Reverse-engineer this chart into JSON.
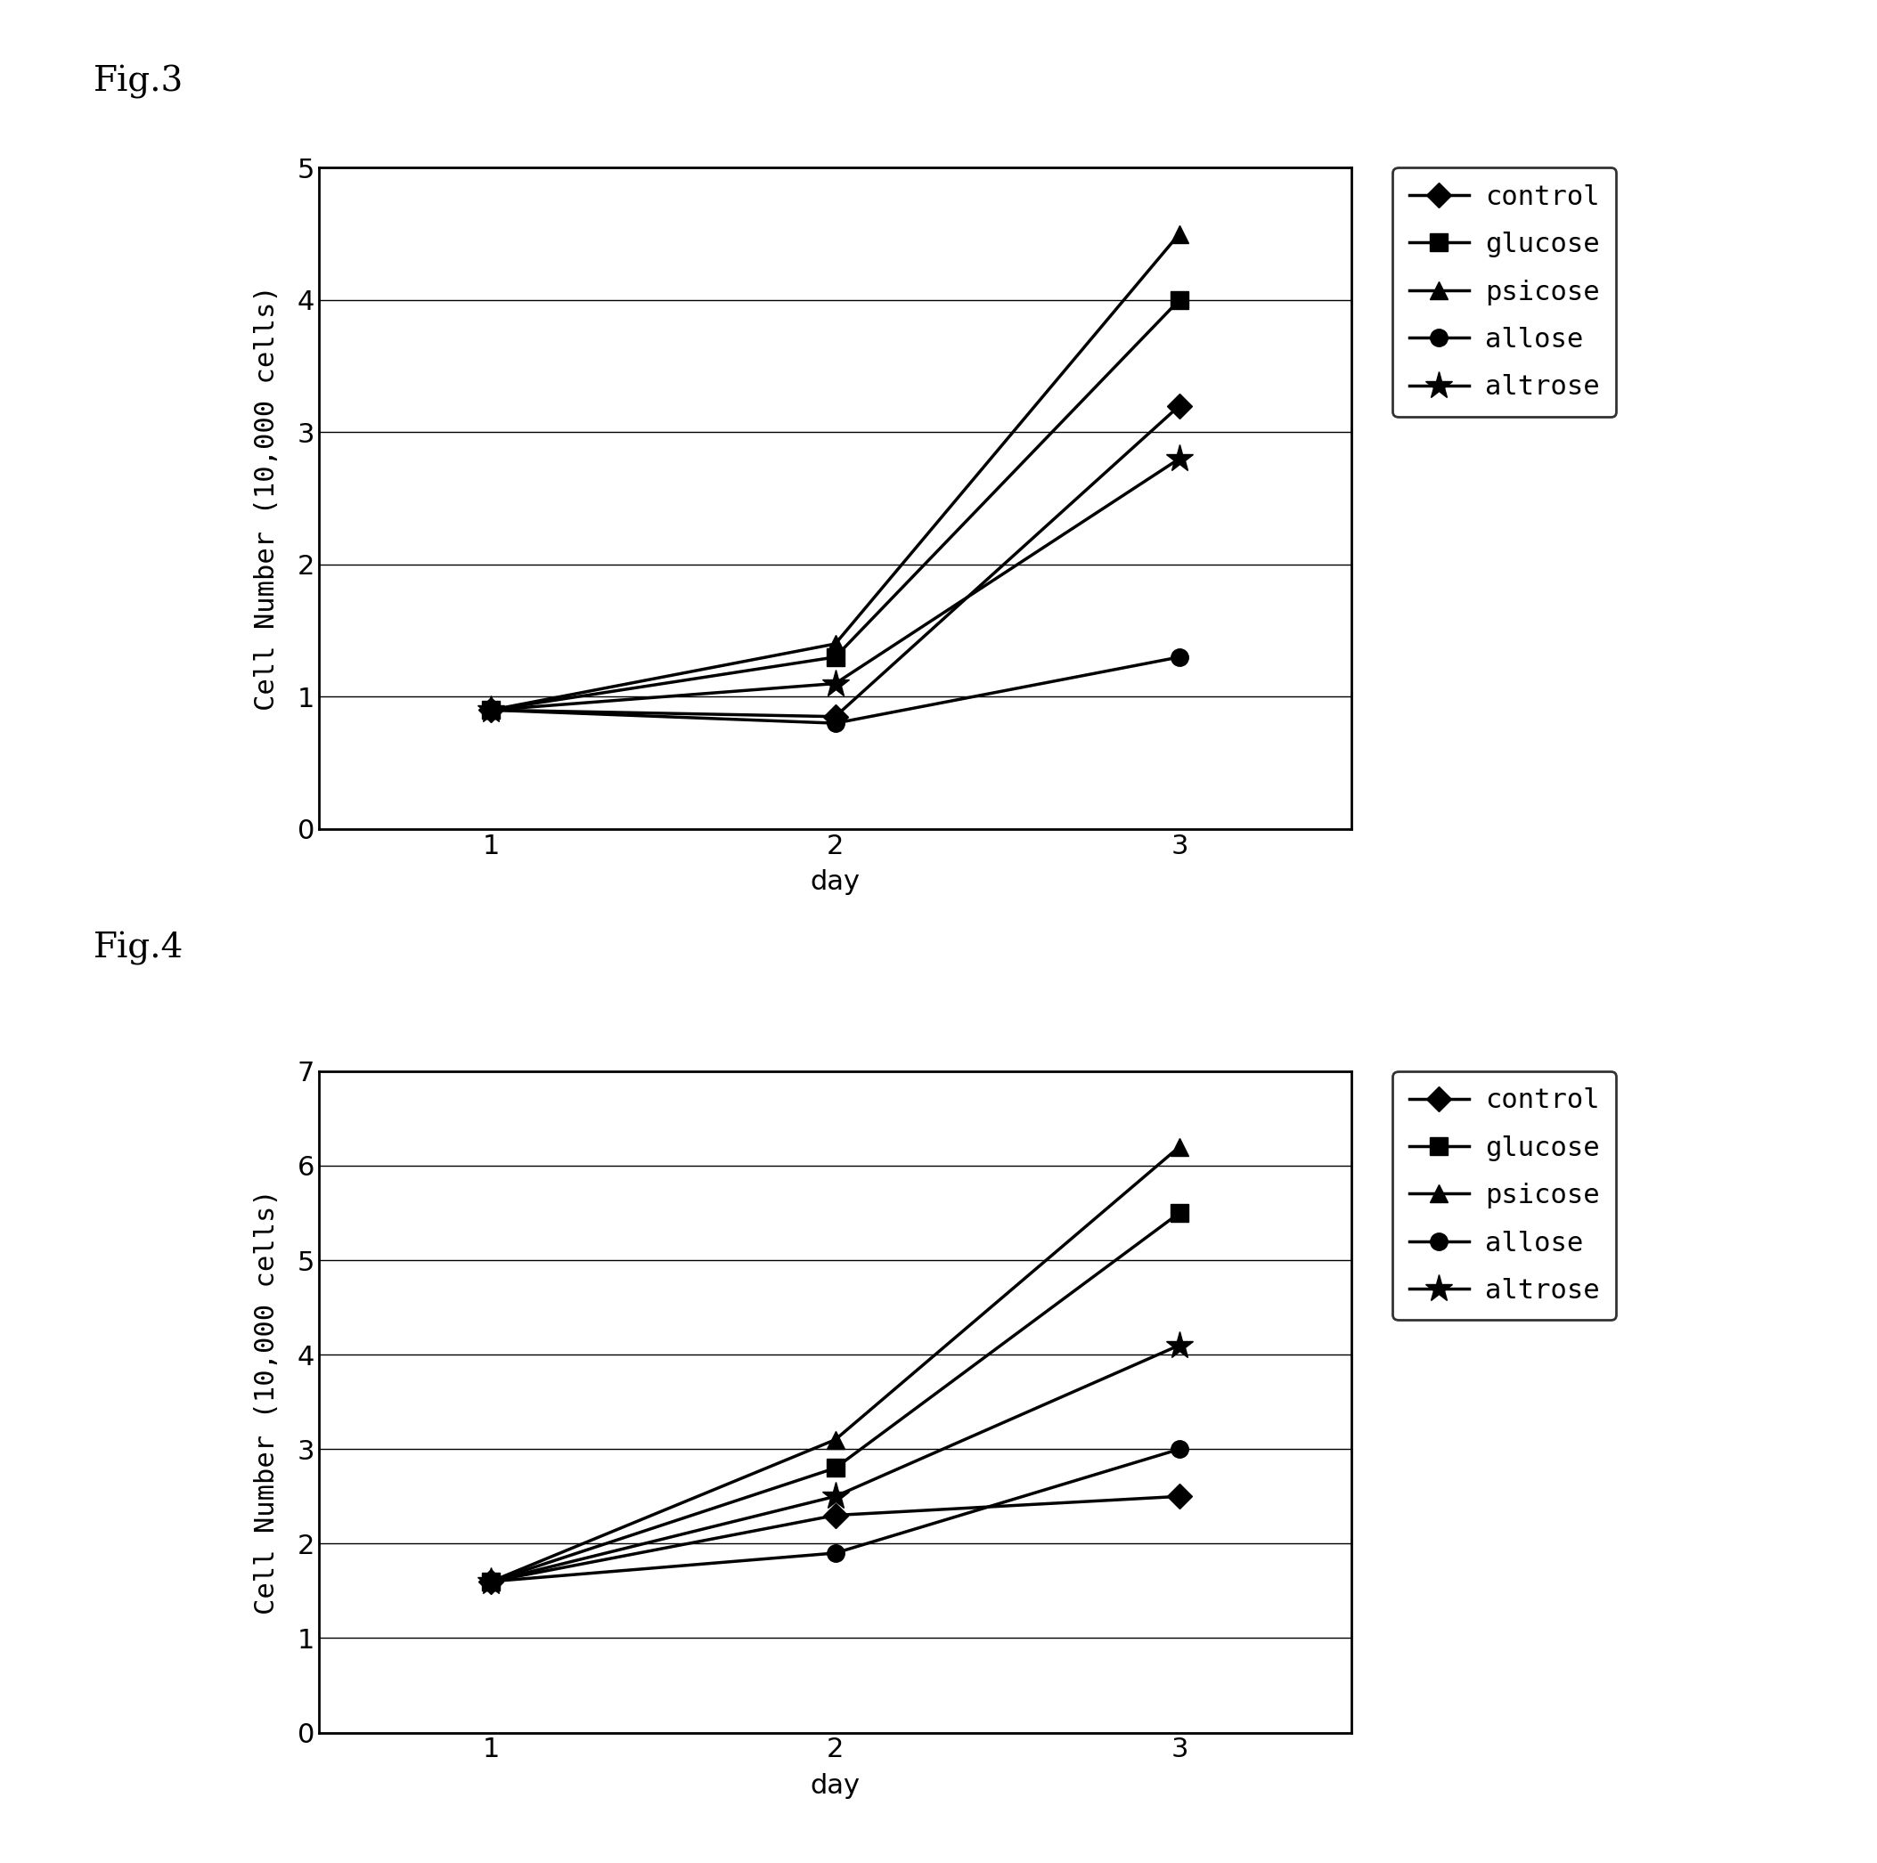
{
  "fig3": {
    "title": "Fig.3",
    "series": [
      {
        "label": "control",
        "marker": "D",
        "data": [
          0.9,
          0.85,
          3.2
        ]
      },
      {
        "label": "glucose",
        "marker": "s",
        "data": [
          0.9,
          1.3,
          4.0
        ]
      },
      {
        "label": "psicose",
        "marker": "^",
        "data": [
          0.9,
          1.4,
          4.5
        ]
      },
      {
        "label": "allose",
        "marker": "o",
        "data": [
          0.9,
          0.8,
          1.3
        ]
      },
      {
        "label": "altrose",
        "marker": "*",
        "data": [
          0.9,
          1.1,
          2.8
        ]
      }
    ],
    "x": [
      1,
      2,
      3
    ],
    "xlim": [
      0.5,
      3.5
    ],
    "ylim": [
      0,
      5
    ],
    "yticks": [
      0,
      1,
      2,
      3,
      4,
      5
    ],
    "ylabel": "Cell Number (10,000 cells)",
    "xlabel": "day"
  },
  "fig4": {
    "title": "Fig.4",
    "series": [
      {
        "label": "control",
        "marker": "D",
        "data": [
          1.6,
          2.3,
          2.5
        ]
      },
      {
        "label": "glucose",
        "marker": "s",
        "data": [
          1.6,
          2.8,
          5.5
        ]
      },
      {
        "label": "psicose",
        "marker": "^",
        "data": [
          1.6,
          3.1,
          6.2
        ]
      },
      {
        "label": "allose",
        "marker": "o",
        "data": [
          1.6,
          1.9,
          3.0
        ]
      },
      {
        "label": "altrose",
        "marker": "*",
        "data": [
          1.6,
          2.5,
          4.1
        ]
      }
    ],
    "x": [
      1,
      2,
      3
    ],
    "xlim": [
      0.5,
      3.5
    ],
    "ylim": [
      0,
      7
    ],
    "yticks": [
      0,
      1,
      2,
      3,
      4,
      5,
      6,
      7
    ],
    "ylabel": "Cell Number (10,000 cells)",
    "xlabel": "day"
  },
  "line_color": "#000000",
  "marker_size": 14,
  "linewidth": 2.5,
  "fig3_label": "Fig.3",
  "fig4_label": "Fig.4",
  "fig_label_fontsize": 28,
  "tick_fontsize": 22,
  "axis_label_fontsize": 22,
  "legend_fontsize": 22,
  "background_color": "#ffffff"
}
